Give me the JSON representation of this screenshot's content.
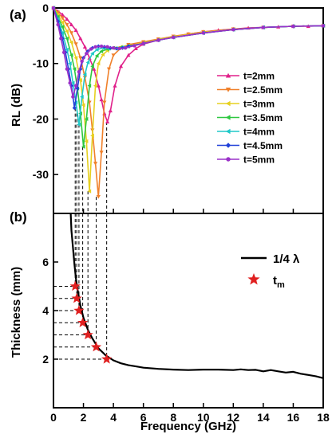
{
  "chart_data": [
    {
      "panel_label": "(a)",
      "type": "line",
      "xlabel": "",
      "ylabel": "RL (dB)",
      "xlim": [
        0,
        18
      ],
      "ylim": [
        -37,
        0
      ],
      "xticks": [
        0,
        2,
        4,
        6,
        8,
        10,
        12,
        14,
        16,
        18
      ],
      "yticks": [
        -30,
        -20,
        -10,
        0
      ],
      "legend_position": "right",
      "series": [
        {
          "name": "t=2mm",
          "color": "#e0208a",
          "marker": "triangle-up",
          "x": [
            0,
            0.3,
            0.6,
            0.9,
            1.2,
            1.5,
            1.8,
            2.1,
            2.4,
            2.7,
            3.0,
            3.2,
            3.4,
            3.6,
            3.8,
            4.1,
            4.5,
            5.0,
            5.5,
            6,
            7,
            8,
            9,
            10,
            11,
            12,
            13,
            14,
            15,
            16,
            17,
            18
          ],
          "y": [
            0,
            -0.6,
            -1.2,
            -2,
            -3,
            -4,
            -5.5,
            -7,
            -9,
            -11,
            -14,
            -16.5,
            -19,
            -20.5,
            -18.5,
            -14,
            -10.5,
            -8.5,
            -7.3,
            -6.5,
            -5.8,
            -5.2,
            -4.7,
            -4.3,
            -4,
            -3.8,
            -3.6,
            -3.5,
            -3.4,
            -3.3,
            -3.3,
            -3.2
          ]
        },
        {
          "name": "t=2.5mm",
          "color": "#f0802a",
          "marker": "triangle-down",
          "x": [
            0,
            0.3,
            0.6,
            0.9,
            1.2,
            1.5,
            1.8,
            2.1,
            2.4,
            2.6,
            2.8,
            3.0,
            3.2,
            3.4,
            3.7,
            4.0,
            4.5,
            5.0,
            6,
            7,
            8,
            9,
            10,
            12,
            14,
            16,
            18
          ],
          "y": [
            0,
            -0.8,
            -1.8,
            -3,
            -4.5,
            -6.5,
            -9,
            -12.5,
            -17,
            -22,
            -28,
            -34,
            -26,
            -17,
            -11,
            -8.5,
            -7.2,
            -6.6,
            -6.1,
            -5.6,
            -5.1,
            -4.7,
            -4.3,
            -3.8,
            -3.5,
            -3.3,
            -3.2
          ]
        },
        {
          "name": "t=3mm",
          "color": "#e6d020",
          "marker": "triangle-left",
          "x": [
            0,
            0.3,
            0.6,
            0.9,
            1.2,
            1.5,
            1.8,
            2.0,
            2.2,
            2.4,
            2.6,
            2.8,
            3.0,
            3.3,
            3.6,
            4.0,
            4.5,
            5.0,
            6,
            7,
            8,
            10,
            12,
            14,
            16,
            18
          ],
          "y": [
            0,
            -1.2,
            -2.6,
            -4.2,
            -6.2,
            -9,
            -13,
            -17.5,
            -24,
            -33,
            -23,
            -14,
            -10,
            -8.4,
            -7.7,
            -7.2,
            -7,
            -6.8,
            -6.3,
            -5.7,
            -5.2,
            -4.4,
            -3.9,
            -3.5,
            -3.3,
            -3.2
          ]
        },
        {
          "name": "t=3.5mm",
          "color": "#2ec840",
          "marker": "triangle-left",
          "x": [
            0,
            0.3,
            0.6,
            0.9,
            1.2,
            1.4,
            1.6,
            1.8,
            2.0,
            2.2,
            2.4,
            2.6,
            2.9,
            3.2,
            3.6,
            4.0,
            4.5,
            5.0,
            6,
            7,
            8,
            10,
            12,
            14,
            16,
            18
          ],
          "y": [
            0,
            -1.6,
            -3.4,
            -5.5,
            -8.5,
            -11,
            -14.5,
            -19,
            -25,
            -20,
            -14,
            -10.5,
            -8.6,
            -7.8,
            -7.4,
            -7.2,
            -7.1,
            -6.9,
            -6.4,
            -5.8,
            -5.3,
            -4.5,
            -3.9,
            -3.5,
            -3.3,
            -3.2
          ]
        },
        {
          "name": "t=4mm",
          "color": "#20c8c8",
          "marker": "triangle-left",
          "x": [
            0,
            0.3,
            0.6,
            0.9,
            1.1,
            1.3,
            1.5,
            1.7,
            1.9,
            2.1,
            2.3,
            2.6,
            2.9,
            3.3,
            3.7,
            4.2,
            4.6,
            5.0,
            6,
            7,
            8,
            10,
            12,
            14,
            16,
            18
          ],
          "y": [
            0,
            -2,
            -4.5,
            -7.5,
            -10,
            -13.5,
            -17,
            -21,
            -16,
            -12,
            -9.8,
            -8.2,
            -7.5,
            -7.2,
            -7.3,
            -7.3,
            -7.1,
            -6.9,
            -6.4,
            -5.8,
            -5.3,
            -4.5,
            -3.9,
            -3.5,
            -3.3,
            -3.2
          ]
        },
        {
          "name": "t=4.5mm",
          "color": "#2040d8",
          "marker": "diamond",
          "x": [
            0,
            0.3,
            0.6,
            0.8,
            1.0,
            1.2,
            1.4,
            1.6,
            1.8,
            2.0,
            2.3,
            2.6,
            3.0,
            3.4,
            3.8,
            4.2,
            4.6,
            5.0,
            6,
            7,
            8,
            10,
            12,
            14,
            16,
            18
          ],
          "y": [
            0,
            -2.4,
            -5.5,
            -8,
            -11,
            -14,
            -18,
            -14.5,
            -11,
            -9,
            -7.8,
            -7.2,
            -6.9,
            -7,
            -7.2,
            -7.3,
            -7.2,
            -6.9,
            -6.4,
            -5.8,
            -5.3,
            -4.5,
            -3.9,
            -3.5,
            -3.3,
            -3.2
          ]
        },
        {
          "name": "t=5mm",
          "color": "#9a30c8",
          "marker": "circle",
          "x": [
            0,
            0.3,
            0.5,
            0.7,
            0.9,
            1.1,
            1.3,
            1.5,
            1.7,
            1.9,
            2.2,
            2.5,
            2.8,
            3.2,
            3.6,
            4.0,
            4.4,
            4.8,
            5.4,
            6,
            7,
            8,
            10,
            12,
            14,
            16,
            18
          ],
          "y": [
            0,
            -3,
            -5.5,
            -8,
            -11,
            -13.5,
            -16,
            -14,
            -11.5,
            -9.6,
            -8.2,
            -7.4,
            -7,
            -6.9,
            -7,
            -7.2,
            -7.3,
            -7.2,
            -6.8,
            -6.4,
            -5.8,
            -5.3,
            -4.5,
            -3.9,
            -3.5,
            -3.3,
            -3.2
          ]
        }
      ]
    },
    {
      "panel_label": "(b)",
      "type": "line",
      "xlabel": "Frequency (GHz)",
      "ylabel": "Thickness (mm)",
      "xlim": [
        0,
        18
      ],
      "ylim": [
        0,
        8
      ],
      "xticks": [
        0,
        2,
        4,
        6,
        8,
        10,
        12,
        14,
        16,
        18
      ],
      "yticks": [
        2,
        4,
        6
      ],
      "legend_position": "right",
      "series": [
        {
          "name": "1/4 λ",
          "color": "#000000",
          "marker": "none",
          "x": [
            1.15,
            1.2,
            1.3,
            1.4,
            1.5,
            1.6,
            1.8,
            2.0,
            2.3,
            2.6,
            3.0,
            3.5,
            4.0,
            4.5,
            5.0,
            5.5,
            6,
            7,
            8,
            9,
            10,
            11,
            12,
            12.5,
            13,
            13.5,
            14,
            14.5,
            15,
            15.5,
            16,
            16.5,
            17,
            17.5,
            18
          ],
          "y": [
            8,
            7.3,
            6.6,
            5.9,
            5.3,
            4.9,
            4.2,
            3.7,
            3.2,
            2.85,
            2.45,
            2.15,
            1.95,
            1.83,
            1.75,
            1.7,
            1.65,
            1.6,
            1.57,
            1.55,
            1.57,
            1.57,
            1.55,
            1.58,
            1.55,
            1.56,
            1.5,
            1.55,
            1.5,
            1.45,
            1.48,
            1.4,
            1.35,
            1.3,
            1.22
          ]
        },
        {
          "name": "t",
          "name_subscript": "m",
          "color": "#e02020",
          "marker": "star",
          "x": [
            1.45,
            1.55,
            1.7,
            1.95,
            2.3,
            2.85,
            3.55
          ],
          "y": [
            5,
            4.5,
            4,
            3.5,
            3,
            2.5,
            2
          ]
        }
      ]
    }
  ],
  "guides": {
    "line_color": "#000000",
    "peak_x": [
      1.45,
      1.55,
      1.7,
      1.95,
      2.3,
      2.85,
      3.55
    ],
    "thickness_y": [
      5,
      4.5,
      4,
      3.5,
      3,
      2.5,
      2
    ]
  }
}
